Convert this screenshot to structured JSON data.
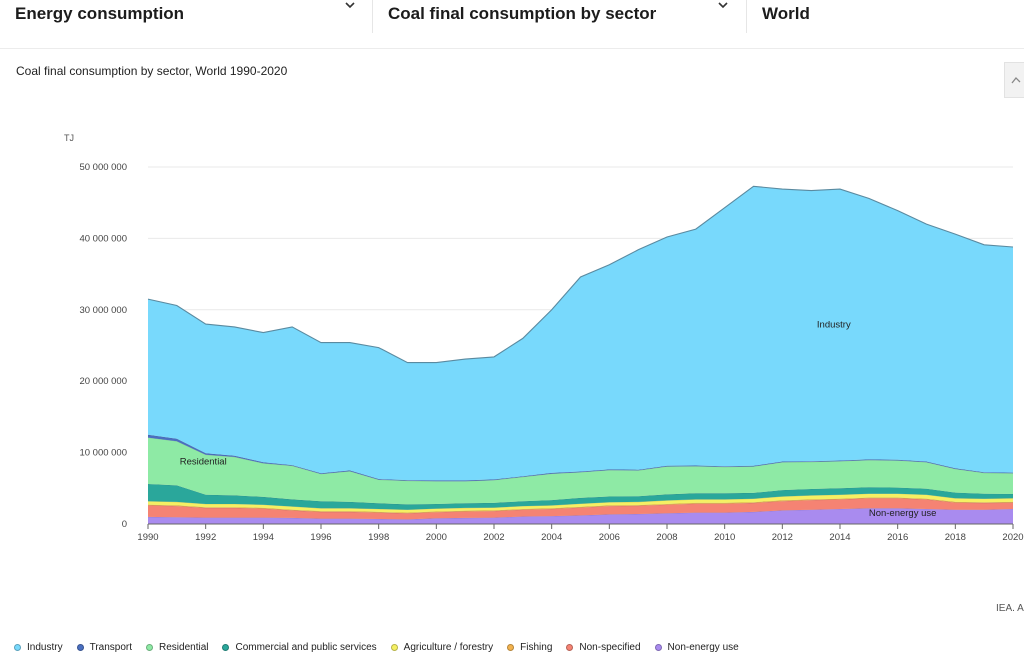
{
  "selectors": [
    {
      "label": "Energy consumption"
    },
    {
      "label": "Coal final consumption by sector"
    },
    {
      "label": "World"
    }
  ],
  "chart_title": "Coal final consumption by sector, World 1990-2020",
  "source_note": "IEA. A",
  "chart_data": {
    "type": "area",
    "stacked": true,
    "title": "Coal final consumption by sector, World 1990-2020",
    "ylabel": "TJ",
    "xlabel": "",
    "ylim": [
      0,
      50000000
    ],
    "yticks": [
      0,
      10000000,
      20000000,
      30000000,
      40000000,
      50000000
    ],
    "ytick_labels": [
      "0",
      "10 000 000",
      "20 000 000",
      "30 000 000",
      "40 000 000",
      "50 000 000"
    ],
    "xticks": [
      1990,
      1992,
      1994,
      1996,
      1998,
      2000,
      2002,
      2004,
      2006,
      2008,
      2010,
      2012,
      2014,
      2016,
      2018,
      2020
    ],
    "x": [
      1990,
      1991,
      1992,
      1993,
      1994,
      1995,
      1996,
      1997,
      1998,
      1999,
      2000,
      2001,
      2002,
      2003,
      2004,
      2005,
      2006,
      2007,
      2008,
      2009,
      2010,
      2011,
      2012,
      2013,
      2014,
      2015,
      2016,
      2017,
      2018,
      2019,
      2020
    ],
    "grid": true,
    "legend_position": "bottom",
    "series": [
      {
        "name": "Non-energy use",
        "color": "#a98bef",
        "values": [
          1000000,
          950000,
          900000,
          900000,
          900000,
          850000,
          750000,
          750000,
          700000,
          650000,
          800000,
          850000,
          900000,
          1050000,
          1100000,
          1200000,
          1350000,
          1400000,
          1500000,
          1600000,
          1600000,
          1700000,
          1900000,
          2000000,
          2100000,
          2200000,
          2200000,
          2100000,
          2000000,
          2000000,
          2100000
        ]
      },
      {
        "name": "Non-specified",
        "color": "#f58373",
        "values": [
          1600000,
          1550000,
          1350000,
          1350000,
          1250000,
          1050000,
          950000,
          950000,
          900000,
          850000,
          850000,
          900000,
          900000,
          950000,
          1000000,
          1100000,
          1150000,
          1150000,
          1200000,
          1250000,
          1250000,
          1250000,
          1300000,
          1350000,
          1350000,
          1400000,
          1400000,
          1350000,
          1000000,
          950000,
          900000
        ]
      },
      {
        "name": "Fishing",
        "color": "#f2b24d",
        "values": [
          100000,
          100000,
          100000,
          100000,
          100000,
          100000,
          100000,
          100000,
          100000,
          100000,
          100000,
          100000,
          100000,
          100000,
          100000,
          100000,
          100000,
          100000,
          100000,
          100000,
          100000,
          100000,
          100000,
          100000,
          100000,
          100000,
          100000,
          100000,
          100000,
          100000,
          100000
        ]
      },
      {
        "name": "Agriculture / forestry",
        "color": "#f5f063",
        "values": [
          500000,
          500000,
          450000,
          450000,
          450000,
          450000,
          400000,
          400000,
          400000,
          400000,
          400000,
          400000,
          400000,
          400000,
          400000,
          450000,
          450000,
          450000,
          500000,
          500000,
          500000,
          500000,
          550000,
          550000,
          550000,
          550000,
          550000,
          550000,
          500000,
          500000,
          500000
        ]
      },
      {
        "name": "Commercial and public services",
        "color": "#2aa79b",
        "values": [
          2400000,
          2300000,
          1300000,
          1200000,
          1100000,
          1000000,
          1000000,
          900000,
          800000,
          750000,
          650000,
          650000,
          650000,
          700000,
          750000,
          800000,
          800000,
          800000,
          850000,
          850000,
          850000,
          800000,
          900000,
          900000,
          900000,
          900000,
          850000,
          850000,
          800000,
          700000,
          600000
        ]
      },
      {
        "name": "Residential",
        "color": "#8eeaa5",
        "values": [
          6500000,
          6200000,
          5600000,
          5400000,
          4700000,
          4700000,
          3800000,
          4300000,
          3300000,
          3300000,
          3200000,
          3100000,
          3200000,
          3400000,
          3700000,
          3600000,
          3700000,
          3600000,
          3900000,
          3800000,
          3700000,
          3700000,
          3900000,
          3800000,
          3800000,
          3800000,
          3800000,
          3700000,
          3300000,
          2900000,
          2900000
        ]
      },
      {
        "name": "Transport",
        "color": "#4a6fc0",
        "values": [
          400000,
          350000,
          200000,
          150000,
          150000,
          100000,
          100000,
          100000,
          100000,
          100000,
          100000,
          100000,
          100000,
          100000,
          100000,
          100000,
          100000,
          100000,
          100000,
          100000,
          100000,
          100000,
          100000,
          100000,
          100000,
          100000,
          100000,
          100000,
          100000,
          100000,
          100000
        ]
      },
      {
        "name": "Industry",
        "color": "#78d9fc",
        "values": [
          19000000,
          18650000,
          18100000,
          18050000,
          18150000,
          19350000,
          18300000,
          17900000,
          18400000,
          16450000,
          16500000,
          17000000,
          17150000,
          19300000,
          22850000,
          27250000,
          28650000,
          30800000,
          32050000,
          33100000,
          36200000,
          39150000,
          38150000,
          37900000,
          38000000,
          36550000,
          34900000,
          33250000,
          32800000,
          31850000,
          31600000
        ]
      }
    ],
    "annotations": [
      {
        "text": "Industry",
        "series": "Industry",
        "x": 2013.2,
        "y": 27500000
      },
      {
        "text": "Residential",
        "series": "Residential",
        "x": 1991.1,
        "y": 8300000
      },
      {
        "text": "Non-energy use",
        "series": "Non-energy use",
        "x": 2015,
        "y": 1150000
      }
    ]
  },
  "legend": [
    {
      "label": "Industry",
      "color": "#78d9fc"
    },
    {
      "label": "Transport",
      "color": "#4a6fc0"
    },
    {
      "label": "Residential",
      "color": "#8eeaa5"
    },
    {
      "label": "Commercial and public services",
      "color": "#2aa79b"
    },
    {
      "label": "Agriculture / forestry",
      "color": "#f5f063"
    },
    {
      "label": "Fishing",
      "color": "#f2b24d"
    },
    {
      "label": "Non-specified",
      "color": "#f58373"
    },
    {
      "label": "Non-energy use",
      "color": "#a98bef"
    }
  ],
  "icons": {
    "selector_chevron": "chevron-down-icon",
    "corner_button": "chart-options-icon"
  }
}
